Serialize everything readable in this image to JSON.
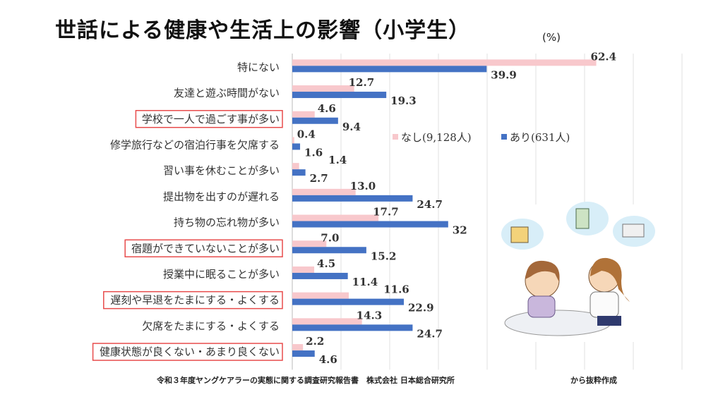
{
  "chart_data": {
    "type": "bar",
    "orientation": "horizontal",
    "title": "世話による健康や生活上の影響（小学生）",
    "unit": "(%)",
    "categories": [
      "特にない",
      "友達と遊ぶ時間がない",
      "学校で一人で過ごす事が多い",
      "修学旅行などの宿泊行事を欠席する",
      "習い事を休むことが多い",
      "提出物を出すのが遅れる",
      "持ち物の忘れ物が多い",
      "宿題ができていないことが多い",
      "授業中に眠ることが多い",
      "遅刻や早退をたまにする・よくする",
      "欠席をたまにする・よくする",
      "健康状態が良くない・あまり良くない"
    ],
    "highlighted": [
      false,
      false,
      true,
      false,
      false,
      false,
      false,
      true,
      false,
      true,
      false,
      true
    ],
    "series": [
      {
        "name": "なし(9,128人)",
        "color": "#f8c8cc",
        "values": [
          62.4,
          12.7,
          4.6,
          0.4,
          1.4,
          13.0,
          17.7,
          7.0,
          4.5,
          11.6,
          14.3,
          2.2
        ],
        "labels": [
          "62.4",
          "12.7",
          "4.6",
          "0.4",
          "1.4",
          "13.0",
          "17.7",
          "7.0",
          "4.5",
          "11.6",
          "14.3",
          "2.2"
        ]
      },
      {
        "name": "あり(631人)",
        "color": "#4472c4",
        "values": [
          39.9,
          19.3,
          9.4,
          1.6,
          2.7,
          24.7,
          32,
          15.2,
          11.4,
          22.9,
          24.7,
          4.6
        ],
        "labels": [
          "39.9",
          "19.3",
          "9.4",
          "1.6",
          "2.7",
          "24.7",
          "32",
          "15.2",
          "11.4",
          "22.9",
          "24.7",
          "4.6"
        ]
      }
    ],
    "xlim": [
      0,
      80
    ],
    "grid": true,
    "legend": "center-right",
    "highlight_color": "#e84c4c"
  },
  "source": "令和３年度ヤングケアラーの実態に関する調査研究報告書　株式会社 日本総合研究所",
  "source_suffix": "から抜粋作成"
}
